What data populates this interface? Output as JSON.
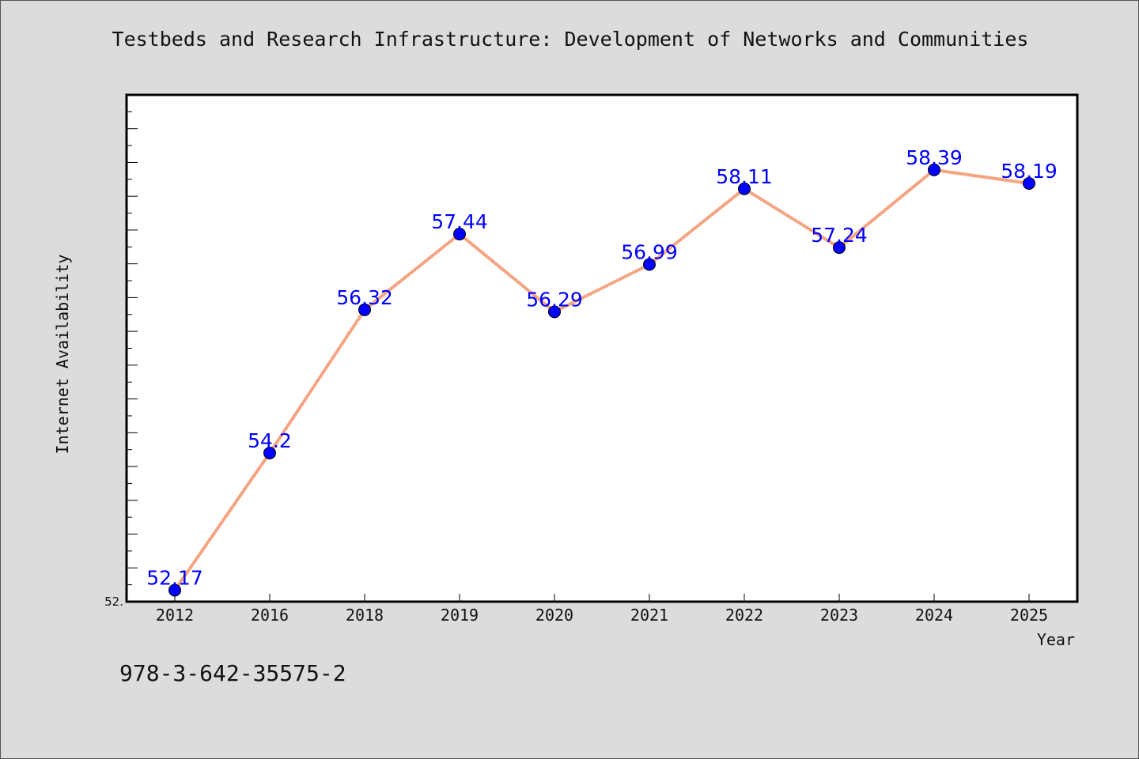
{
  "chart_data": {
    "type": "line",
    "title": "Testbeds and Research Infrastructure: Development of Networks and Communities",
    "xlabel": "Year",
    "ylabel": "Internet Availability",
    "categories": [
      "2012",
      "2016",
      "2018",
      "2019",
      "2020",
      "2021",
      "2022",
      "2023",
      "2024",
      "2025"
    ],
    "series": [
      {
        "values": [
          52.17,
          54.2,
          56.32,
          57.44,
          56.29,
          56.99,
          58.11,
          57.24,
          58.39,
          58.19
        ],
        "labels": [
          "52.17",
          "54.2",
          "56.32",
          "57.44",
          "56.29",
          "56.99",
          "58.11",
          "57.24",
          "58.39",
          "58.19"
        ]
      }
    ],
    "ylim": [
      52.0,
      59.5
    ],
    "y_tick_label": "52.",
    "grid": false,
    "legend": "none",
    "colors": {
      "line": "#f4a582",
      "marker": "#0000ff",
      "data_label": "#0000ff",
      "background": "#dcdcdc",
      "plot_background": "#ffffff"
    }
  },
  "footer": {
    "code": "978-3-642-35575-2"
  }
}
